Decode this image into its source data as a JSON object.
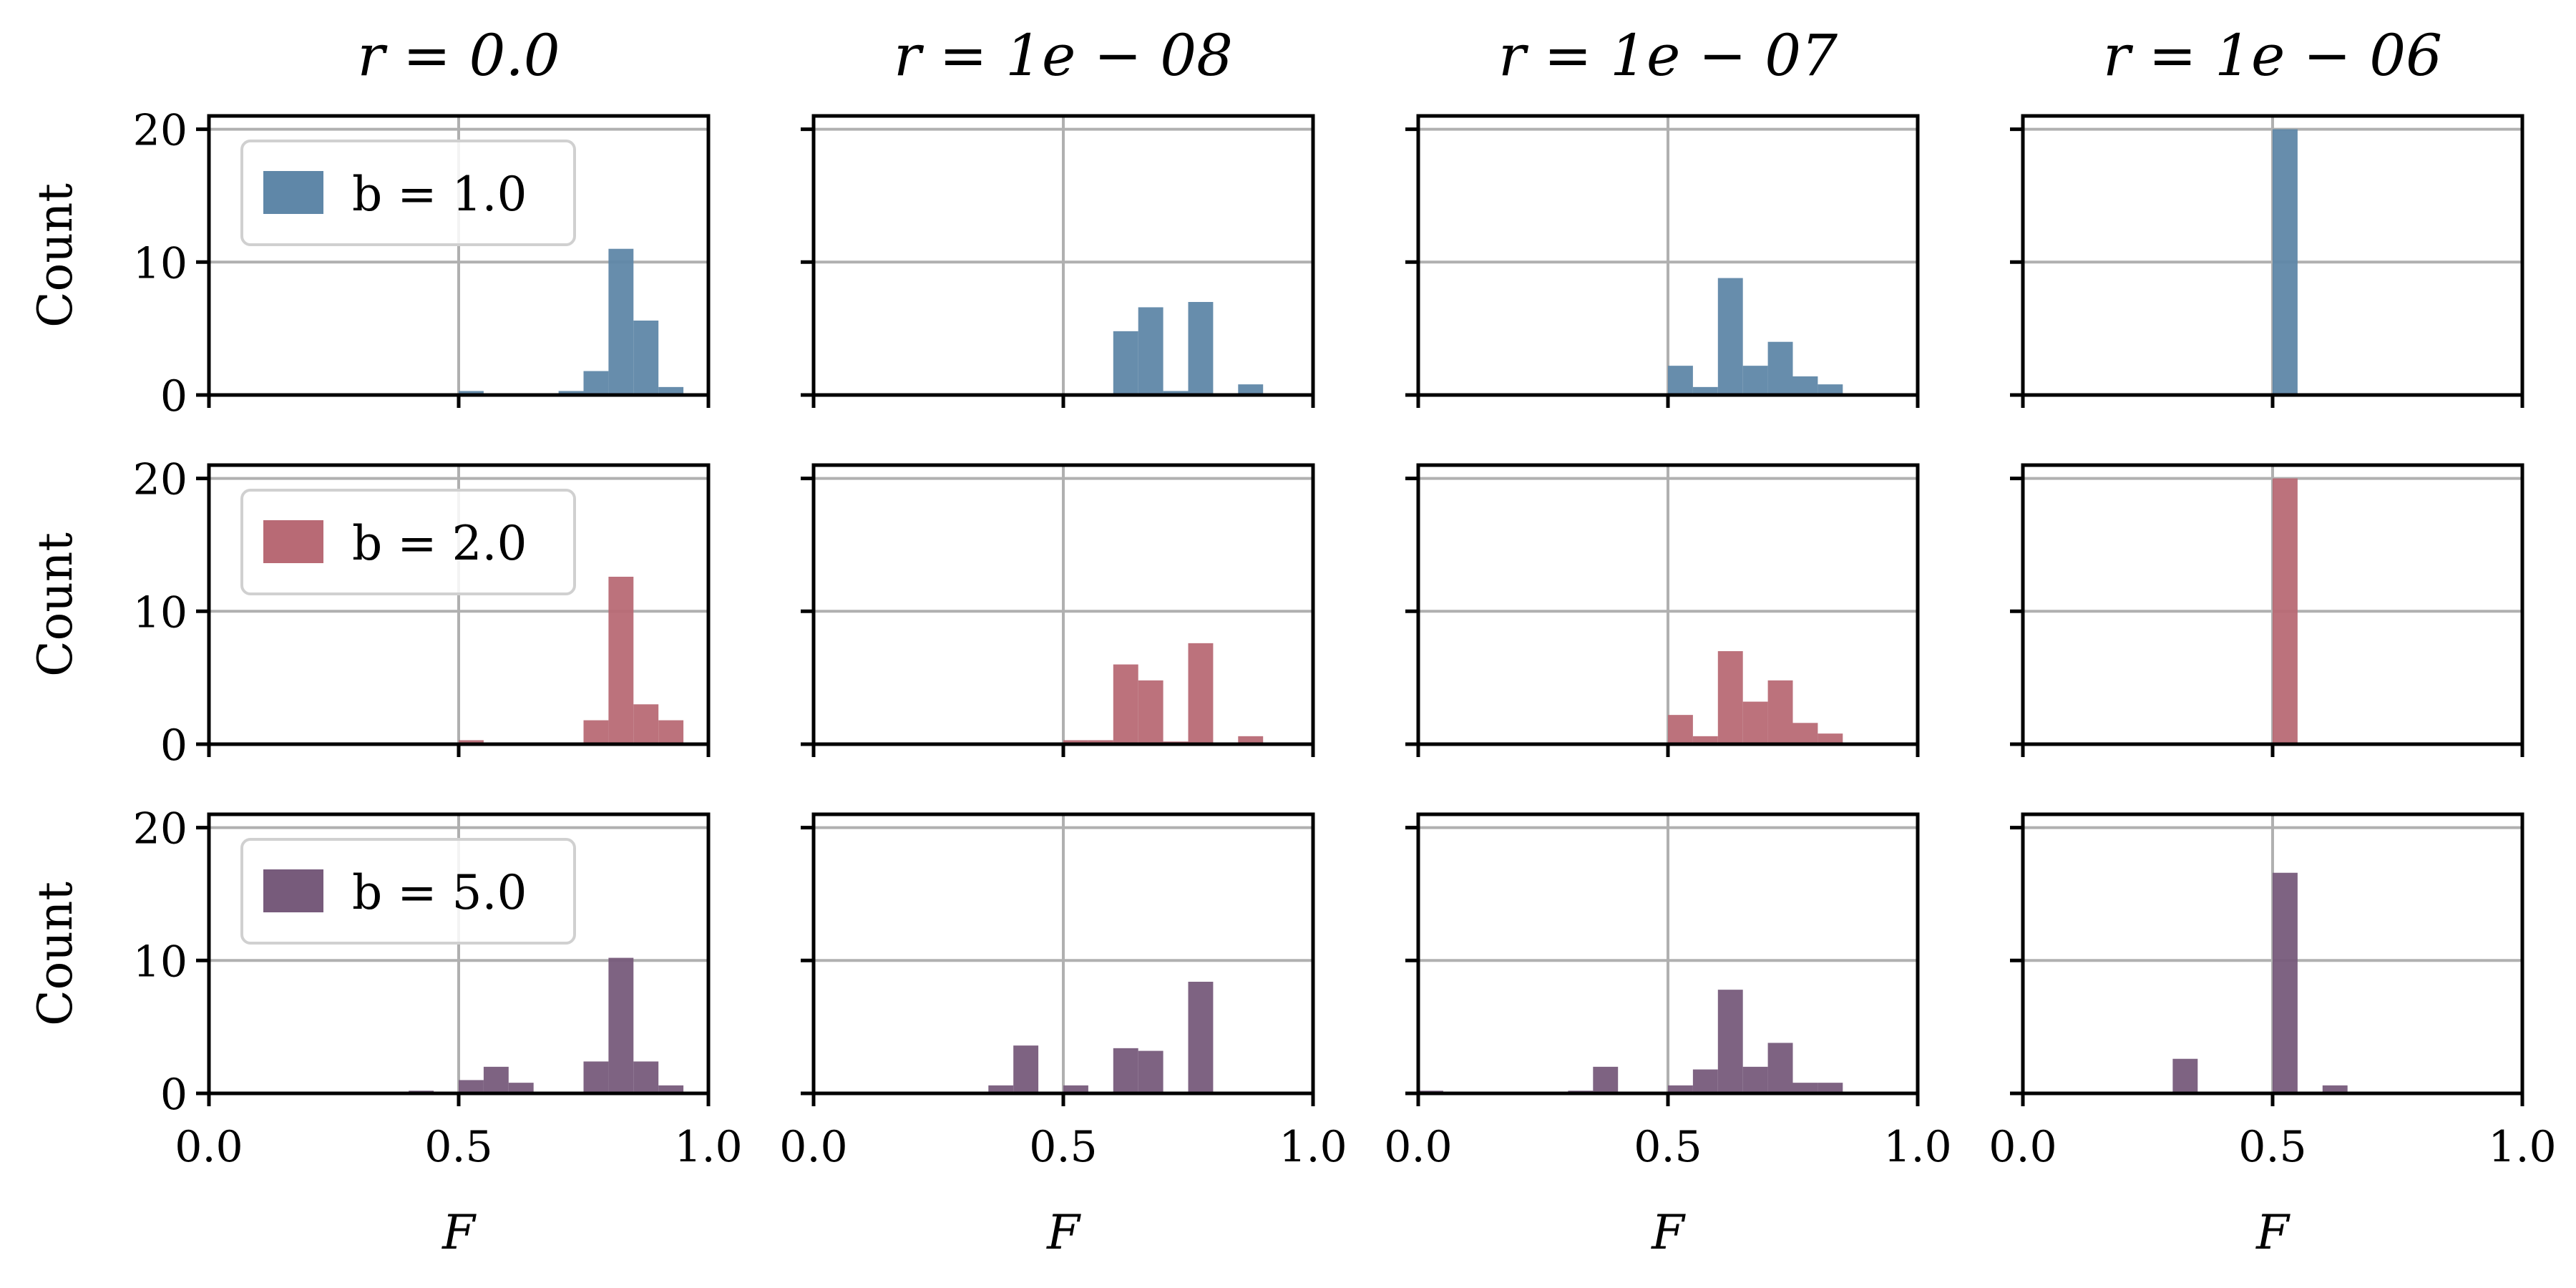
{
  "chart_data": {
    "type": "bar",
    "title": "",
    "xlabel": "F",
    "ylabel": "Count",
    "xlim": [
      0.0,
      1.0
    ],
    "ylim": [
      0,
      21
    ],
    "xticks": [
      0.0,
      0.5,
      1.0
    ],
    "xtick_labels": [
      "0.0",
      "0.5",
      "1.0"
    ],
    "yticks": [
      0,
      10,
      20
    ],
    "ytick_labels": [
      "0",
      "10",
      "20"
    ],
    "bin_width": 0.05,
    "grid": true,
    "legend_position": "top-left",
    "column_titles": [
      "r = 0.0",
      "r = 1e − 08",
      "r = 1e − 07",
      "r = 1e − 06"
    ],
    "rows": [
      {
        "legend": "b = 1.0",
        "color": "#5F87A8",
        "panels": [
          {
            "bins": [
              [
                0.5,
                0.3
              ],
              [
                0.55,
                0.1
              ],
              [
                0.7,
                0.3
              ],
              [
                0.75,
                1.8
              ],
              [
                0.8,
                11.0
              ],
              [
                0.85,
                5.6
              ],
              [
                0.9,
                0.6
              ]
            ]
          },
          {
            "bins": [
              [
                0.6,
                4.8
              ],
              [
                0.65,
                6.6
              ],
              [
                0.7,
                0.3
              ],
              [
                0.75,
                7.0
              ],
              [
                0.85,
                0.8
              ]
            ]
          },
          {
            "bins": [
              [
                0.5,
                2.2
              ],
              [
                0.55,
                0.6
              ],
              [
                0.6,
                8.8
              ],
              [
                0.65,
                2.2
              ],
              [
                0.7,
                4.0
              ],
              [
                0.75,
                1.4
              ],
              [
                0.8,
                0.8
              ]
            ]
          },
          {
            "bins": [
              [
                0.5,
                20.0
              ]
            ]
          }
        ]
      },
      {
        "legend": "b = 2.0",
        "color": "#B86A75",
        "panels": [
          {
            "bins": [
              [
                0.5,
                0.3
              ],
              [
                0.75,
                1.8
              ],
              [
                0.8,
                12.6
              ],
              [
                0.85,
                3.0
              ],
              [
                0.9,
                1.8
              ]
            ]
          },
          {
            "bins": [
              [
                0.5,
                0.3
              ],
              [
                0.55,
                0.3
              ],
              [
                0.6,
                6.0
              ],
              [
                0.65,
                4.8
              ],
              [
                0.7,
                0.2
              ],
              [
                0.75,
                7.6
              ],
              [
                0.85,
                0.6
              ]
            ]
          },
          {
            "bins": [
              [
                0.5,
                2.2
              ],
              [
                0.55,
                0.6
              ],
              [
                0.6,
                7.0
              ],
              [
                0.65,
                3.2
              ],
              [
                0.7,
                4.8
              ],
              [
                0.75,
                1.6
              ],
              [
                0.8,
                0.8
              ]
            ]
          },
          {
            "bins": [
              [
                0.5,
                20.0
              ]
            ]
          }
        ]
      },
      {
        "legend": "b = 5.0",
        "color": "#775B7B",
        "panels": [
          {
            "bins": [
              [
                0.3,
                0.1
              ],
              [
                0.4,
                0.2
              ],
              [
                0.5,
                1.0
              ],
              [
                0.55,
                2.0
              ],
              [
                0.6,
                0.8
              ],
              [
                0.75,
                2.4
              ],
              [
                0.8,
                10.2
              ],
              [
                0.85,
                2.4
              ],
              [
                0.9,
                0.6
              ]
            ]
          },
          {
            "bins": [
              [
                0.35,
                0.6
              ],
              [
                0.4,
                3.6
              ],
              [
                0.5,
                0.6
              ],
              [
                0.6,
                3.4
              ],
              [
                0.65,
                3.2
              ],
              [
                0.75,
                8.4
              ],
              [
                0.85,
                0.1
              ]
            ]
          },
          {
            "bins": [
              [
                0.0,
                0.2
              ],
              [
                0.3,
                0.2
              ],
              [
                0.35,
                2.0
              ],
              [
                0.5,
                0.6
              ],
              [
                0.55,
                1.8
              ],
              [
                0.6,
                7.8
              ],
              [
                0.65,
                2.0
              ],
              [
                0.7,
                3.8
              ],
              [
                0.75,
                0.8
              ],
              [
                0.8,
                0.8
              ]
            ]
          },
          {
            "bins": [
              [
                0.0,
                0.1
              ],
              [
                0.3,
                2.6
              ],
              [
                0.5,
                16.6
              ],
              [
                0.6,
                0.6
              ]
            ]
          }
        ]
      }
    ]
  }
}
